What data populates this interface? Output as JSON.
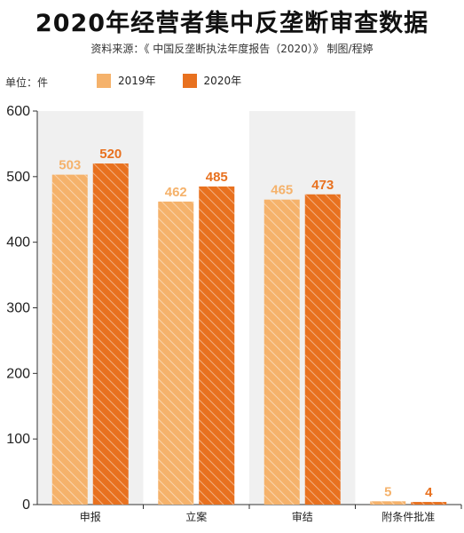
{
  "header": {
    "title": "2020年经营者集中反垄断审查数据",
    "subtitle": "资料来源：《 中国反垄断执法年度报告（2020）》  制图/程婷",
    "unit": "单位：件"
  },
  "colors": {
    "series_2019": "#F5B26B",
    "series_2020": "#E8711F",
    "band": "#F0F0F0"
  },
  "chart_data": {
    "type": "bar",
    "categories": [
      "申报",
      "立案",
      "审结",
      "附条件批准"
    ],
    "series": [
      {
        "name": "2019年",
        "values": [
          503,
          462,
          465,
          5
        ]
      },
      {
        "name": "2020年",
        "values": [
          520,
          485,
          473,
          4
        ]
      }
    ],
    "yticks": [
      0,
      100,
      200,
      300,
      400,
      500,
      600
    ],
    "ylim": [
      0,
      600
    ],
    "legend_position": "top",
    "grid": false
  }
}
